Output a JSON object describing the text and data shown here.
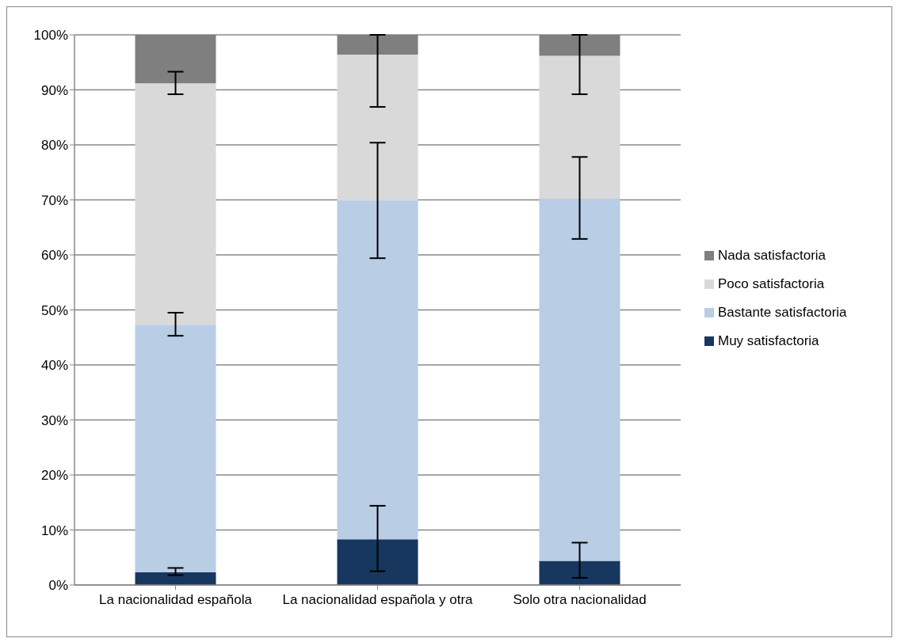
{
  "chart_data": {
    "type": "bar",
    "stacked": true,
    "categories": [
      "La nacionalidad española",
      "La nacionalidad española y otra",
      "Solo otra nacionalidad"
    ],
    "series": [
      {
        "name": "Muy satisfactoria",
        "color": "#17375e",
        "values": [
          2.3,
          8.3,
          4.4
        ],
        "errors": [
          [
            1.8,
            3.1
          ],
          [
            2.5,
            14.4
          ],
          [
            1.3,
            7.7
          ]
        ]
      },
      {
        "name": "Bastante satisfactoria",
        "color": "#b9cde5",
        "values": [
          45.0,
          61.6,
          65.8
        ],
        "errors": [
          [
            45.3,
            49.5
          ],
          [
            59.4,
            80.4
          ],
          [
            62.9,
            77.8
          ]
        ]
      },
      {
        "name": "Poco satisfactoria",
        "color": "#d9d9d9",
        "values": [
          43.9,
          26.5,
          26.0
        ],
        "errors": [
          [
            89.2,
            93.3
          ],
          [
            86.9,
            100
          ],
          [
            89.2,
            100
          ]
        ]
      },
      {
        "name": "Nada satisfactoria",
        "color": "#7f7f7f",
        "values": [
          8.8,
          3.6,
          3.8
        ]
      }
    ],
    "ylim": [
      0,
      100
    ],
    "yticks": [
      {
        "value": 0,
        "label": "0%"
      },
      {
        "value": 10,
        "label": "10%"
      },
      {
        "value": 20,
        "label": "20%"
      },
      {
        "value": 30,
        "label": "30%"
      },
      {
        "value": 40,
        "label": "40%"
      },
      {
        "value": 50,
        "label": "50%"
      },
      {
        "value": 60,
        "label": "60%"
      },
      {
        "value": 70,
        "label": "70%"
      },
      {
        "value": 80,
        "label": "80%"
      },
      {
        "value": 90,
        "label": "90%"
      },
      {
        "value": 100,
        "label": "100%"
      }
    ],
    "grid": "y",
    "legend": "right"
  }
}
